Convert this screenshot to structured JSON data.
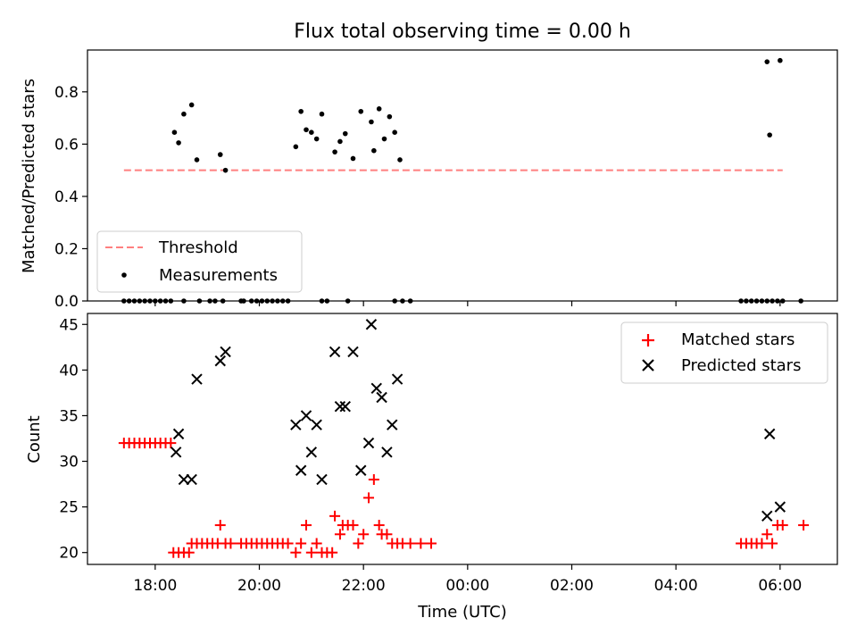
{
  "chart_data": [
    {
      "type": "scatter",
      "title": "Flux total observing time = 0.00 h",
      "xlabel": "",
      "ylabel": "Matched/Predicted stars",
      "ylim": [
        0,
        0.96
      ],
      "yticks": [
        "0.0",
        "0.2",
        "0.4",
        "0.6",
        "0.8"
      ],
      "threshold": {
        "name": "Threshold",
        "value": 0.5,
        "x_range": [
          -0.6,
          12.05
        ],
        "color": "#ff7f7f"
      },
      "legend_position": "lower-left",
      "series": [
        {
          "name": "Measurements",
          "color": "#000000",
          "points": [
            [
              -0.6,
              0.0
            ],
            [
              -0.5,
              0.0
            ],
            [
              -0.4,
              0.0
            ],
            [
              -0.3,
              0.0
            ],
            [
              -0.2,
              0.0
            ],
            [
              -0.1,
              0.0
            ],
            [
              0.0,
              0.0
            ],
            [
              0.1,
              0.0
            ],
            [
              0.2,
              0.0
            ],
            [
              0.3,
              0.0
            ],
            [
              0.55,
              0.0
            ],
            [
              0.85,
              0.0
            ],
            [
              1.05,
              0.0
            ],
            [
              1.15,
              0.0
            ],
            [
              1.3,
              0.0
            ],
            [
              1.65,
              0.0
            ],
            [
              1.7,
              0.0
            ],
            [
              1.85,
              0.0
            ],
            [
              1.95,
              0.0
            ],
            [
              2.05,
              0.0
            ],
            [
              2.15,
              0.0
            ],
            [
              2.25,
              0.0
            ],
            [
              2.35,
              0.0
            ],
            [
              2.45,
              0.0
            ],
            [
              2.55,
              0.0
            ],
            [
              3.2,
              0.0
            ],
            [
              3.3,
              0.0
            ],
            [
              3.7,
              0.0
            ],
            [
              4.6,
              0.0
            ],
            [
              4.75,
              0.0
            ],
            [
              4.9,
              0.0
            ],
            [
              11.25,
              0.0
            ],
            [
              11.35,
              0.0
            ],
            [
              11.45,
              0.0
            ],
            [
              11.55,
              0.0
            ],
            [
              11.65,
              0.0
            ],
            [
              11.75,
              0.0
            ],
            [
              11.85,
              0.0
            ],
            [
              11.95,
              0.0
            ],
            [
              12.05,
              0.0
            ],
            [
              12.4,
              0.0
            ],
            [
              0.37,
              0.645
            ],
            [
              0.45,
              0.605
            ],
            [
              0.55,
              0.715
            ],
            [
              0.7,
              0.75
            ],
            [
              0.8,
              0.54
            ],
            [
              1.25,
              0.56
            ],
            [
              1.35,
              0.5
            ],
            [
              2.7,
              0.59
            ],
            [
              2.8,
              0.725
            ],
            [
              2.9,
              0.655
            ],
            [
              3.0,
              0.645
            ],
            [
              3.1,
              0.62
            ],
            [
              3.2,
              0.715
            ],
            [
              3.45,
              0.57
            ],
            [
              3.55,
              0.61
            ],
            [
              3.65,
              0.64
            ],
            [
              3.8,
              0.545
            ],
            [
              3.95,
              0.725
            ],
            [
              4.15,
              0.685
            ],
            [
              4.2,
              0.575
            ],
            [
              4.3,
              0.735
            ],
            [
              4.4,
              0.62
            ],
            [
              4.5,
              0.705
            ],
            [
              4.6,
              0.645
            ],
            [
              4.7,
              0.54
            ],
            [
              11.75,
              0.915
            ],
            [
              11.8,
              0.635
            ],
            [
              12.0,
              0.92
            ]
          ]
        }
      ],
      "legend": [
        "Threshold",
        "Measurements"
      ]
    },
    {
      "type": "scatter",
      "title": "",
      "xlabel": "Time (UTC)",
      "ylabel": "Count",
      "ylim": [
        18.7,
        46.2
      ],
      "yticks": [
        "20",
        "25",
        "30",
        "35",
        "40",
        "45"
      ],
      "x_tick_positions": [
        0,
        2,
        4,
        6,
        8,
        10,
        12
      ],
      "x_tick_labels": [
        "18:00",
        "20:00",
        "22:00",
        "00:00",
        "02:00",
        "04:00",
        "06:00"
      ],
      "xlim": [
        -1.3,
        13.1
      ],
      "legend_position": "upper-right",
      "series": [
        {
          "name": "Matched stars",
          "color": "#ff0000",
          "marker": "+",
          "points": [
            [
              -0.6,
              32
            ],
            [
              -0.5,
              32
            ],
            [
              -0.4,
              32
            ],
            [
              -0.3,
              32
            ],
            [
              -0.2,
              32
            ],
            [
              -0.1,
              32
            ],
            [
              0.0,
              32
            ],
            [
              0.1,
              32
            ],
            [
              0.2,
              32
            ],
            [
              0.3,
              32
            ],
            [
              0.35,
              20
            ],
            [
              0.45,
              20
            ],
            [
              0.55,
              20
            ],
            [
              0.65,
              20
            ],
            [
              0.7,
              21
            ],
            [
              0.8,
              21
            ],
            [
              0.9,
              21
            ],
            [
              1.0,
              21
            ],
            [
              1.1,
              21
            ],
            [
              1.2,
              21
            ],
            [
              1.25,
              23
            ],
            [
              1.35,
              21
            ],
            [
              1.45,
              21
            ],
            [
              1.65,
              21
            ],
            [
              1.75,
              21
            ],
            [
              1.85,
              21
            ],
            [
              1.95,
              21
            ],
            [
              2.05,
              21
            ],
            [
              2.15,
              21
            ],
            [
              2.25,
              21
            ],
            [
              2.35,
              21
            ],
            [
              2.45,
              21
            ],
            [
              2.55,
              21
            ],
            [
              2.7,
              20
            ],
            [
              2.8,
              21
            ],
            [
              2.9,
              23
            ],
            [
              3.0,
              20
            ],
            [
              3.1,
              21
            ],
            [
              3.2,
              20
            ],
            [
              3.3,
              20
            ],
            [
              3.4,
              20
            ],
            [
              3.45,
              24
            ],
            [
              3.55,
              22
            ],
            [
              3.6,
              23
            ],
            [
              3.7,
              23
            ],
            [
              3.8,
              23
            ],
            [
              3.9,
              21
            ],
            [
              4.0,
              22
            ],
            [
              4.1,
              26
            ],
            [
              4.2,
              28
            ],
            [
              4.3,
              23
            ],
            [
              4.35,
              22
            ],
            [
              4.45,
              22
            ],
            [
              4.55,
              21
            ],
            [
              4.65,
              21
            ],
            [
              4.75,
              21
            ],
            [
              4.9,
              21
            ],
            [
              5.1,
              21
            ],
            [
              5.3,
              21
            ],
            [
              11.25,
              21
            ],
            [
              11.35,
              21
            ],
            [
              11.45,
              21
            ],
            [
              11.55,
              21
            ],
            [
              11.65,
              21
            ],
            [
              11.75,
              22
            ],
            [
              11.85,
              21
            ],
            [
              11.95,
              23
            ],
            [
              12.05,
              23
            ],
            [
              12.45,
              23
            ]
          ]
        },
        {
          "name": "Predicted stars",
          "color": "#000000",
          "marker": "x",
          "points": [
            [
              0.4,
              31
            ],
            [
              0.45,
              33
            ],
            [
              0.55,
              28
            ],
            [
              0.7,
              28
            ],
            [
              0.8,
              39
            ],
            [
              1.25,
              41
            ],
            [
              1.35,
              42
            ],
            [
              2.7,
              34
            ],
            [
              2.8,
              29
            ],
            [
              2.9,
              35
            ],
            [
              3.0,
              31
            ],
            [
              3.1,
              34
            ],
            [
              3.2,
              28
            ],
            [
              3.45,
              42
            ],
            [
              3.55,
              36
            ],
            [
              3.65,
              36
            ],
            [
              3.8,
              42
            ],
            [
              3.95,
              29
            ],
            [
              4.1,
              32
            ],
            [
              4.15,
              45
            ],
            [
              4.25,
              38
            ],
            [
              4.35,
              37
            ],
            [
              4.45,
              31
            ],
            [
              4.55,
              34
            ],
            [
              4.65,
              39
            ],
            [
              11.75,
              24
            ],
            [
              11.8,
              33
            ],
            [
              12.0,
              25
            ]
          ]
        }
      ],
      "legend": [
        "Matched stars",
        "Predicted stars"
      ]
    }
  ]
}
